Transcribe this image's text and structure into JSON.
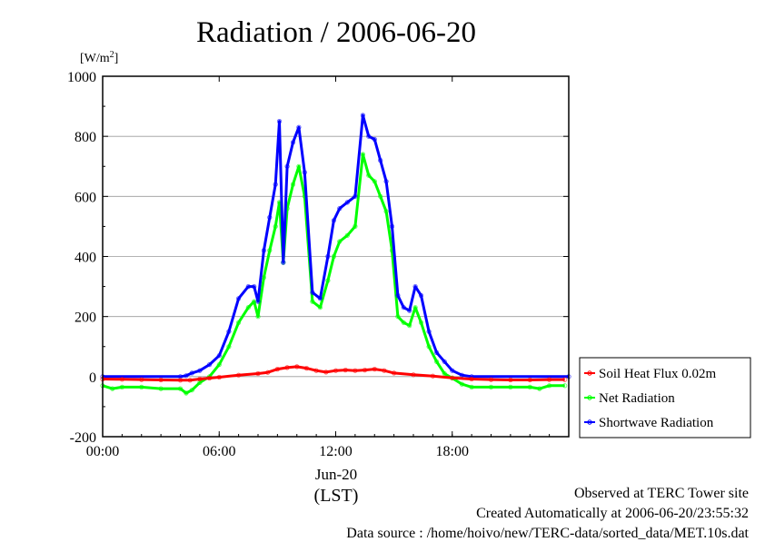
{
  "chart_data": {
    "type": "line",
    "title": "Radiation / 2006-06-20",
    "ylabel": "[W/m",
    "ylabel_sup": "2",
    "ylabel_close": "]",
    "ylim": [
      -200,
      1000
    ],
    "yticks": [
      -200,
      0,
      200,
      400,
      600,
      800,
      1000
    ],
    "ytick_labels": [
      "-200",
      "0",
      "200",
      "400",
      "600",
      "800",
      "1000"
    ],
    "xlim": [
      0,
      24
    ],
    "xticks": [
      0,
      6,
      12,
      18
    ],
    "xtick_labels": [
      "00:00",
      "06:00",
      "12:00",
      "18:00"
    ],
    "xlabel_date": "Jun-20",
    "xlabel": "(LST)",
    "grid": true,
    "legend_position": "lower-right-outside",
    "series": [
      {
        "name": "Soil Heat Flux 0.02m",
        "color": "#ff0000",
        "points": [
          [
            0,
            -8
          ],
          [
            1,
            -9
          ],
          [
            2,
            -10
          ],
          [
            3,
            -11
          ],
          [
            4,
            -12
          ],
          [
            4.5,
            -12
          ],
          [
            5,
            -8
          ],
          [
            5.5,
            -5
          ],
          [
            6,
            -2
          ],
          [
            7,
            5
          ],
          [
            8,
            10
          ],
          [
            8.5,
            14
          ],
          [
            9,
            25
          ],
          [
            9.5,
            30
          ],
          [
            10,
            33
          ],
          [
            10.5,
            28
          ],
          [
            11,
            20
          ],
          [
            11.5,
            15
          ],
          [
            12,
            20
          ],
          [
            12.5,
            22
          ],
          [
            13,
            20
          ],
          [
            13.5,
            22
          ],
          [
            14,
            25
          ],
          [
            14.5,
            20
          ],
          [
            15,
            12
          ],
          [
            16,
            6
          ],
          [
            17,
            2
          ],
          [
            18,
            -4
          ],
          [
            19,
            -8
          ],
          [
            20,
            -10
          ],
          [
            21,
            -11
          ],
          [
            22,
            -11
          ],
          [
            23,
            -10
          ],
          [
            23.8,
            -10
          ]
        ]
      },
      {
        "name": "Net Radiation",
        "color": "#00ff00",
        "points": [
          [
            0,
            -30
          ],
          [
            0.5,
            -40
          ],
          [
            1,
            -35
          ],
          [
            2,
            -35
          ],
          [
            3,
            -40
          ],
          [
            4,
            -40
          ],
          [
            4.3,
            -55
          ],
          [
            4.6,
            -45
          ],
          [
            5,
            -20
          ],
          [
            5.5,
            0
          ],
          [
            6,
            40
          ],
          [
            6.5,
            100
          ],
          [
            7,
            180
          ],
          [
            7.5,
            230
          ],
          [
            7.8,
            250
          ],
          [
            8,
            200
          ],
          [
            8.3,
            330
          ],
          [
            8.6,
            420
          ],
          [
            8.9,
            500
          ],
          [
            9.1,
            580
          ],
          [
            9.3,
            380
          ],
          [
            9.5,
            560
          ],
          [
            9.8,
            640
          ],
          [
            10.1,
            700
          ],
          [
            10.4,
            600
          ],
          [
            10.8,
            250
          ],
          [
            11.2,
            230
          ],
          [
            11.6,
            320
          ],
          [
            11.9,
            400
          ],
          [
            12.2,
            450
          ],
          [
            12.6,
            470
          ],
          [
            13,
            500
          ],
          [
            13.4,
            740
          ],
          [
            13.7,
            670
          ],
          [
            14,
            650
          ],
          [
            14.3,
            600
          ],
          [
            14.6,
            550
          ],
          [
            14.9,
            420
          ],
          [
            15.2,
            200
          ],
          [
            15.5,
            180
          ],
          [
            15.8,
            170
          ],
          [
            16.1,
            230
          ],
          [
            16.4,
            180
          ],
          [
            16.8,
            100
          ],
          [
            17.2,
            50
          ],
          [
            17.6,
            10
          ],
          [
            18,
            -5
          ],
          [
            18.5,
            -25
          ],
          [
            19,
            -35
          ],
          [
            20,
            -35
          ],
          [
            21,
            -35
          ],
          [
            22,
            -35
          ],
          [
            22.5,
            -40
          ],
          [
            23,
            -30
          ],
          [
            23.8,
            -30
          ]
        ]
      },
      {
        "name": "Shortwave Radiation",
        "color": "#0000ff",
        "points": [
          [
            0,
            0
          ],
          [
            4,
            0
          ],
          [
            4.3,
            3
          ],
          [
            4.6,
            12
          ],
          [
            5,
            20
          ],
          [
            5.5,
            40
          ],
          [
            6,
            70
          ],
          [
            6.5,
            150
          ],
          [
            7,
            260
          ],
          [
            7.5,
            300
          ],
          [
            7.8,
            300
          ],
          [
            8,
            250
          ],
          [
            8.3,
            420
          ],
          [
            8.6,
            530
          ],
          [
            8.9,
            640
          ],
          [
            9.1,
            850
          ],
          [
            9.3,
            380
          ],
          [
            9.5,
            700
          ],
          [
            9.8,
            780
          ],
          [
            10.1,
            830
          ],
          [
            10.4,
            680
          ],
          [
            10.8,
            280
          ],
          [
            11.2,
            260
          ],
          [
            11.6,
            400
          ],
          [
            11.9,
            520
          ],
          [
            12.2,
            560
          ],
          [
            12.6,
            580
          ],
          [
            13,
            600
          ],
          [
            13.4,
            870
          ],
          [
            13.7,
            800
          ],
          [
            14,
            790
          ],
          [
            14.3,
            720
          ],
          [
            14.6,
            650
          ],
          [
            14.9,
            500
          ],
          [
            15.2,
            270
          ],
          [
            15.5,
            230
          ],
          [
            15.8,
            220
          ],
          [
            16.1,
            300
          ],
          [
            16.4,
            270
          ],
          [
            16.8,
            150
          ],
          [
            17.2,
            80
          ],
          [
            17.6,
            50
          ],
          [
            18,
            20
          ],
          [
            18.5,
            5
          ],
          [
            19,
            0
          ],
          [
            24,
            0
          ]
        ]
      }
    ]
  },
  "footer": {
    "observed": "Observed at TERC Tower site",
    "created": "Created Automatically at 2006-06-20/23:55:32",
    "source": "Data source : /home/hoivo/new/TERC-data/sorted_data/MET.10s.dat"
  }
}
